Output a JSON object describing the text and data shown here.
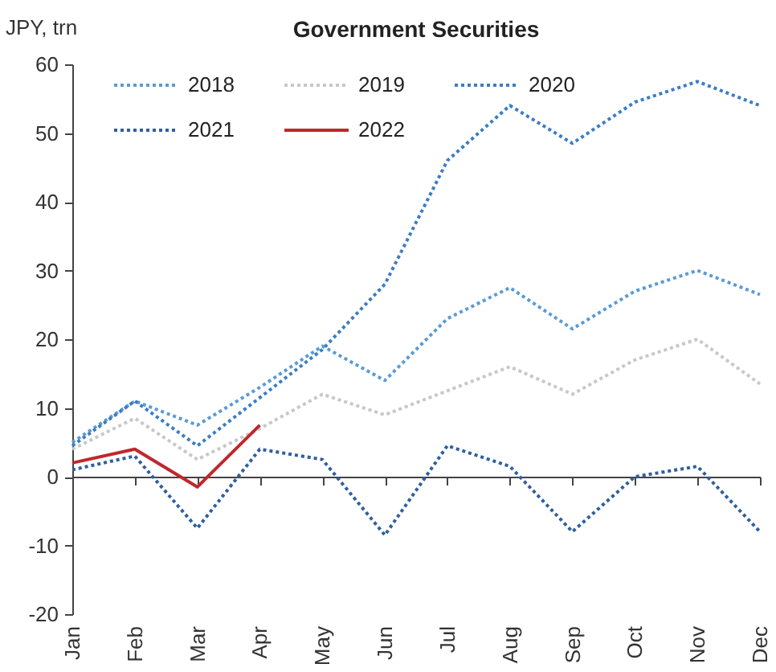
{
  "chart_data": {
    "type": "line",
    "title": "Government Securities",
    "ylabel": "JPY, trn",
    "categories": [
      "Jan",
      "Feb",
      "Mar",
      "Apr",
      "May",
      "Jun",
      "Jul",
      "Aug",
      "Sep",
      "Oct",
      "Nov",
      "Dec"
    ],
    "series": [
      {
        "name": "2018",
        "color": "#5b9bd5",
        "line_style": "dotted",
        "values": [
          5,
          11,
          7.5,
          13,
          19,
          14,
          23,
          27.5,
          21.5,
          27,
          30,
          26.5
        ]
      },
      {
        "name": "2019",
        "color": "#c8c8c8",
        "line_style": "dotted",
        "values": [
          4,
          8.5,
          2.5,
          7,
          12,
          9,
          12.5,
          16,
          12,
          17,
          20,
          13.5
        ]
      },
      {
        "name": "2020",
        "color": "#3c7dc4",
        "line_style": "dotted",
        "values": [
          4.5,
          11,
          4.5,
          11.5,
          18.5,
          28,
          46,
          54,
          48.5,
          54.5,
          57.5,
          54
        ]
      },
      {
        "name": "2021",
        "color": "#2f5f9e",
        "line_style": "dotted",
        "values": [
          1,
          3,
          -7.5,
          4,
          2.5,
          -8.5,
          4.5,
          1.5,
          -8,
          0,
          1.5,
          -8
        ]
      },
      {
        "name": "2022",
        "color": "#c0272d",
        "line_style": "solid",
        "values": [
          2,
          4,
          -1.5,
          7.5,
          null,
          null,
          null,
          null,
          null,
          null,
          null,
          null
        ]
      }
    ],
    "ylim": [
      -20,
      60
    ],
    "yticks": [
      -20,
      -10,
      0,
      10,
      20,
      30,
      40,
      50,
      60
    ],
    "legend": "top left"
  }
}
